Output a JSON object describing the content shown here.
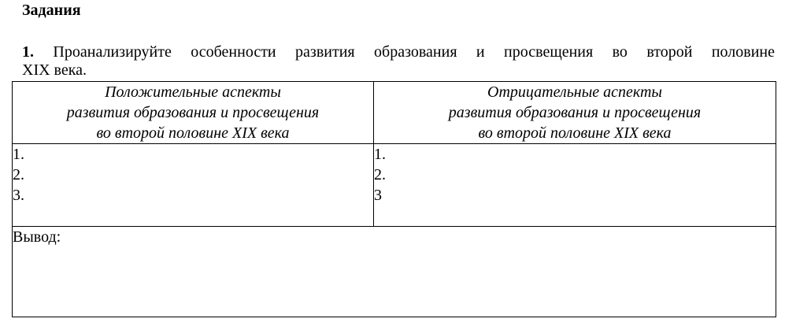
{
  "document": {
    "title": "Задания",
    "task": {
      "number": "1.",
      "text_line1": "Проанализируйте особенности развития образования и просвещения во второй половине",
      "text_line2": "XIX века."
    },
    "table": {
      "columns": [
        {
          "header_lines": [
            "Положительные аспекты",
            "развития образования и просвещения",
            "во второй половине XIX века"
          ],
          "items": [
            "1.",
            "2.",
            "3."
          ]
        },
        {
          "header_lines": [
            "Отрицательные аспекты",
            "развития образования и просвещения",
            "во второй половине XIX века"
          ],
          "items": [
            "1.",
            "2.",
            "3"
          ]
        }
      ],
      "conclusion_label": "Вывод:"
    },
    "colors": {
      "text": "#000000",
      "background": "#ffffff",
      "border": "#000000"
    }
  }
}
